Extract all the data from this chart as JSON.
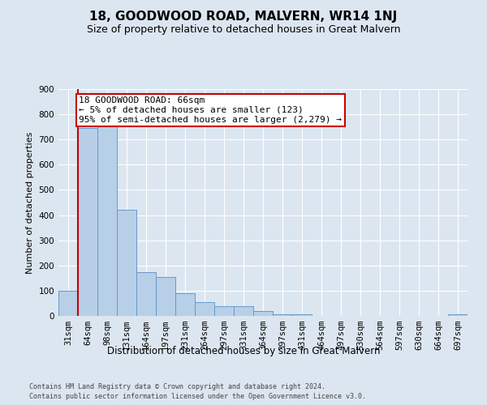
{
  "title": "18, GOODWOOD ROAD, MALVERN, WR14 1NJ",
  "subtitle": "Size of property relative to detached houses in Great Malvern",
  "xlabel": "Distribution of detached houses by size in Great Malvern",
  "ylabel": "Number of detached properties",
  "footer_line1": "Contains HM Land Registry data © Crown copyright and database right 2024.",
  "footer_line2": "Contains public sector information licensed under the Open Government Licence v3.0.",
  "bin_labels": [
    "31sqm",
    "64sqm",
    "98sqm",
    "131sqm",
    "164sqm",
    "197sqm",
    "231sqm",
    "264sqm",
    "297sqm",
    "331sqm",
    "364sqm",
    "397sqm",
    "431sqm",
    "464sqm",
    "497sqm",
    "530sqm",
    "564sqm",
    "597sqm",
    "630sqm",
    "664sqm",
    "697sqm"
  ],
  "bar_values": [
    100,
    745,
    760,
    420,
    175,
    155,
    90,
    55,
    40,
    40,
    20,
    8,
    5,
    0,
    0,
    0,
    0,
    0,
    0,
    0,
    5
  ],
  "bar_color": "#b8cfe8",
  "bar_edge_color": "#6699cc",
  "annotation_title": "18 GOODWOOD ROAD: 66sqm",
  "annotation_line1": "← 5% of detached houses are smaller (123)",
  "annotation_line2": "95% of semi-detached houses are larger (2,279) →",
  "annotation_box_facecolor": "white",
  "annotation_box_edgecolor": "#cc0000",
  "red_line_color": "#cc0000",
  "red_line_x": 0.5,
  "ylim": [
    0,
    900
  ],
  "yticks": [
    0,
    100,
    200,
    300,
    400,
    500,
    600,
    700,
    800,
    900
  ],
  "background_color": "#dce6f0",
  "plot_bg_color": "#dce6f0",
  "grid_color": "#ffffff",
  "title_fontsize": 11,
  "subtitle_fontsize": 9,
  "axis_label_fontsize": 8.5,
  "ylabel_fontsize": 8,
  "tick_fontsize": 7.5,
  "footer_fontsize": 6,
  "annotation_fontsize": 8
}
